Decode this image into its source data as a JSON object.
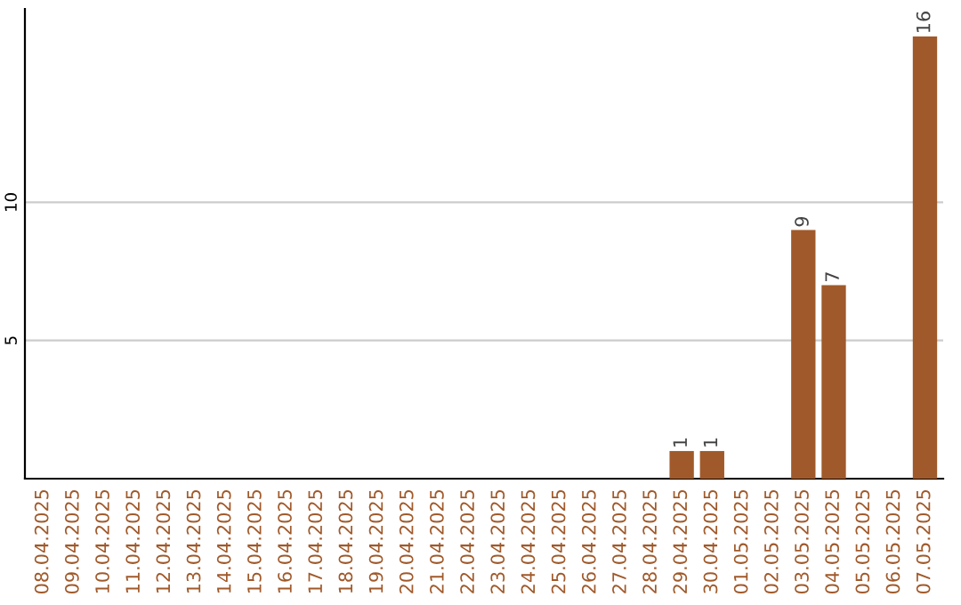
{
  "chart_data": {
    "type": "bar",
    "categories": [
      "08.04.2025",
      "09.04.2025",
      "10.04.2025",
      "11.04.2025",
      "12.04.2025",
      "13.04.2025",
      "14.04.2025",
      "15.04.2025",
      "16.04.2025",
      "17.04.2025",
      "18.04.2025",
      "19.04.2025",
      "20.04.2025",
      "21.04.2025",
      "22.04.2025",
      "23.04.2025",
      "24.04.2025",
      "25.04.2025",
      "26.04.2025",
      "27.04.2025",
      "28.04.2025",
      "29.04.2025",
      "30.04.2025",
      "01.05.2025",
      "02.05.2025",
      "03.05.2025",
      "04.05.2025",
      "05.05.2025",
      "06.05.2025",
      "07.05.2025"
    ],
    "values": [
      0,
      0,
      0,
      0,
      0,
      0,
      0,
      0,
      0,
      0,
      0,
      0,
      0,
      0,
      0,
      0,
      0,
      0,
      0,
      0,
      0,
      1,
      1,
      0,
      0,
      9,
      7,
      0,
      0,
      16
    ],
    "value_labels": [
      null,
      null,
      null,
      null,
      null,
      null,
      null,
      null,
      null,
      null,
      null,
      null,
      null,
      null,
      null,
      null,
      null,
      null,
      null,
      null,
      null,
      "1",
      "1",
      null,
      null,
      "9",
      "7",
      null,
      null,
      "16"
    ],
    "color": "#a0592a",
    "ylim": [
      0,
      17
    ],
    "yticks": [
      5,
      10
    ],
    "grid": "y"
  }
}
